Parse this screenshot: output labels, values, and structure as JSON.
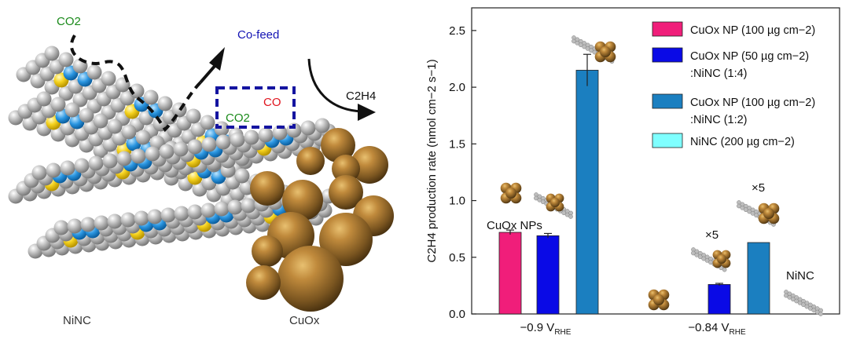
{
  "schematic": {
    "co2_top": "CO2",
    "cofeed": "Co-feed",
    "box_co2": "CO2",
    "box_co": "CO",
    "product": "C2H4",
    "ninc_label": "NiNC",
    "cuox_label": "CuOx"
  },
  "colors": {
    "cuox_np": "#f01e7a",
    "cuox_ninc_1_4": "#0a0ae6",
    "cuox_ninc_1_2": "#1b7fc0",
    "ninc": "#7fffff",
    "co2_text": "#1a8a1a",
    "co_text": "#e0141e",
    "cofeed_text": "#1414b4"
  },
  "chart_data": {
    "type": "bar",
    "ylabel": "C2H4 production rate (nmol cm−2 s−1)",
    "ylim": [
      0,
      2.7
    ],
    "yticks": [
      "0.0",
      "0.5",
      "1.0",
      "1.5",
      "2.0",
      "2.5"
    ],
    "groups": [
      {
        "label": "−0.9 VRHE",
        "main": "−0.9 V",
        "sub": "RHE"
      },
      {
        "label": "−0.84 VRHE",
        "main": "−0.84 V",
        "sub": "RHE"
      }
    ],
    "series": [
      {
        "name": "CuOx NP (100 µg cm−2)",
        "values": [
          0.72,
          null
        ],
        "errors": [
          0.02,
          null
        ]
      },
      {
        "name": "CuOx NP (50 µg cm−2):NiNC (1:4)",
        "values": [
          0.69,
          0.26
        ],
        "errors": [
          0.02,
          0.01
        ]
      },
      {
        "name": "CuOx NP (100 µg cm−2):NiNC (1:2)",
        "values": [
          2.15,
          0.63
        ],
        "errors": [
          0.14,
          0.0
        ]
      },
      {
        "name": "NiNC (200 µg cm−2)",
        "values": [
          null,
          null
        ],
        "errors": [
          null,
          null
        ]
      }
    ],
    "legend": [
      {
        "line1": "CuOx NP (100 µg cm−2)",
        "line2": ""
      },
      {
        "line1": "CuOx NP (50 µg cm−2)",
        "line2": ":NiNC (1:4)"
      },
      {
        "line1": "CuOx NP (100 µg cm−2)",
        "line2": ":NiNC (1:2)"
      },
      {
        "line1": "NiNC (200 µg cm−2)",
        "line2": ""
      }
    ],
    "legend_position": "top-right",
    "annotations": {
      "cuox_nps": "CuOx NPs",
      "x5_a": "×5",
      "x5_b": "×5",
      "ninc": "NiNC"
    }
  }
}
